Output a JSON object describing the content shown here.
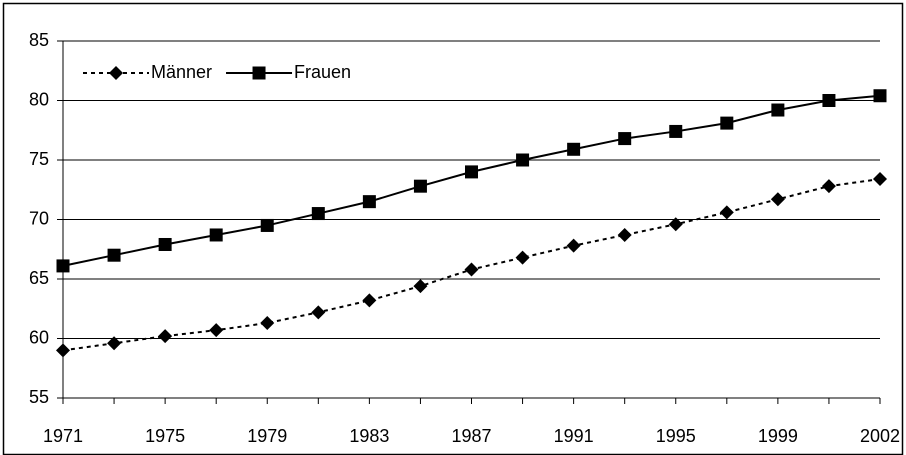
{
  "chart_data": {
    "type": "line",
    "categories": [
      "1971",
      null,
      "1975",
      null,
      "1979",
      null,
      "1983",
      null,
      "1987",
      null,
      "1991",
      null,
      "1995",
      null,
      "1999",
      null,
      "2002"
    ],
    "series": [
      {
        "name": "Männer",
        "color": "#000000",
        "dash": true,
        "marker": "diamond",
        "values": [
          59.0,
          59.6,
          60.2,
          60.7,
          61.3,
          62.2,
          63.2,
          64.4,
          65.8,
          66.8,
          67.8,
          68.7,
          69.6,
          70.6,
          71.7,
          72.8,
          73.4
        ]
      },
      {
        "name": "Frauen",
        "color": "#000000",
        "dash": false,
        "marker": "square",
        "values": [
          66.1,
          67.0,
          67.9,
          68.7,
          69.5,
          70.5,
          71.5,
          72.8,
          74.0,
          75.0,
          75.9,
          76.8,
          77.4,
          78.1,
          79.2,
          80.0,
          80.4
        ]
      }
    ],
    "ylim": [
      55,
      85
    ],
    "yticks": [
      55,
      60,
      65,
      70,
      75,
      80,
      85
    ],
    "grid": true,
    "legend": "top-left"
  }
}
